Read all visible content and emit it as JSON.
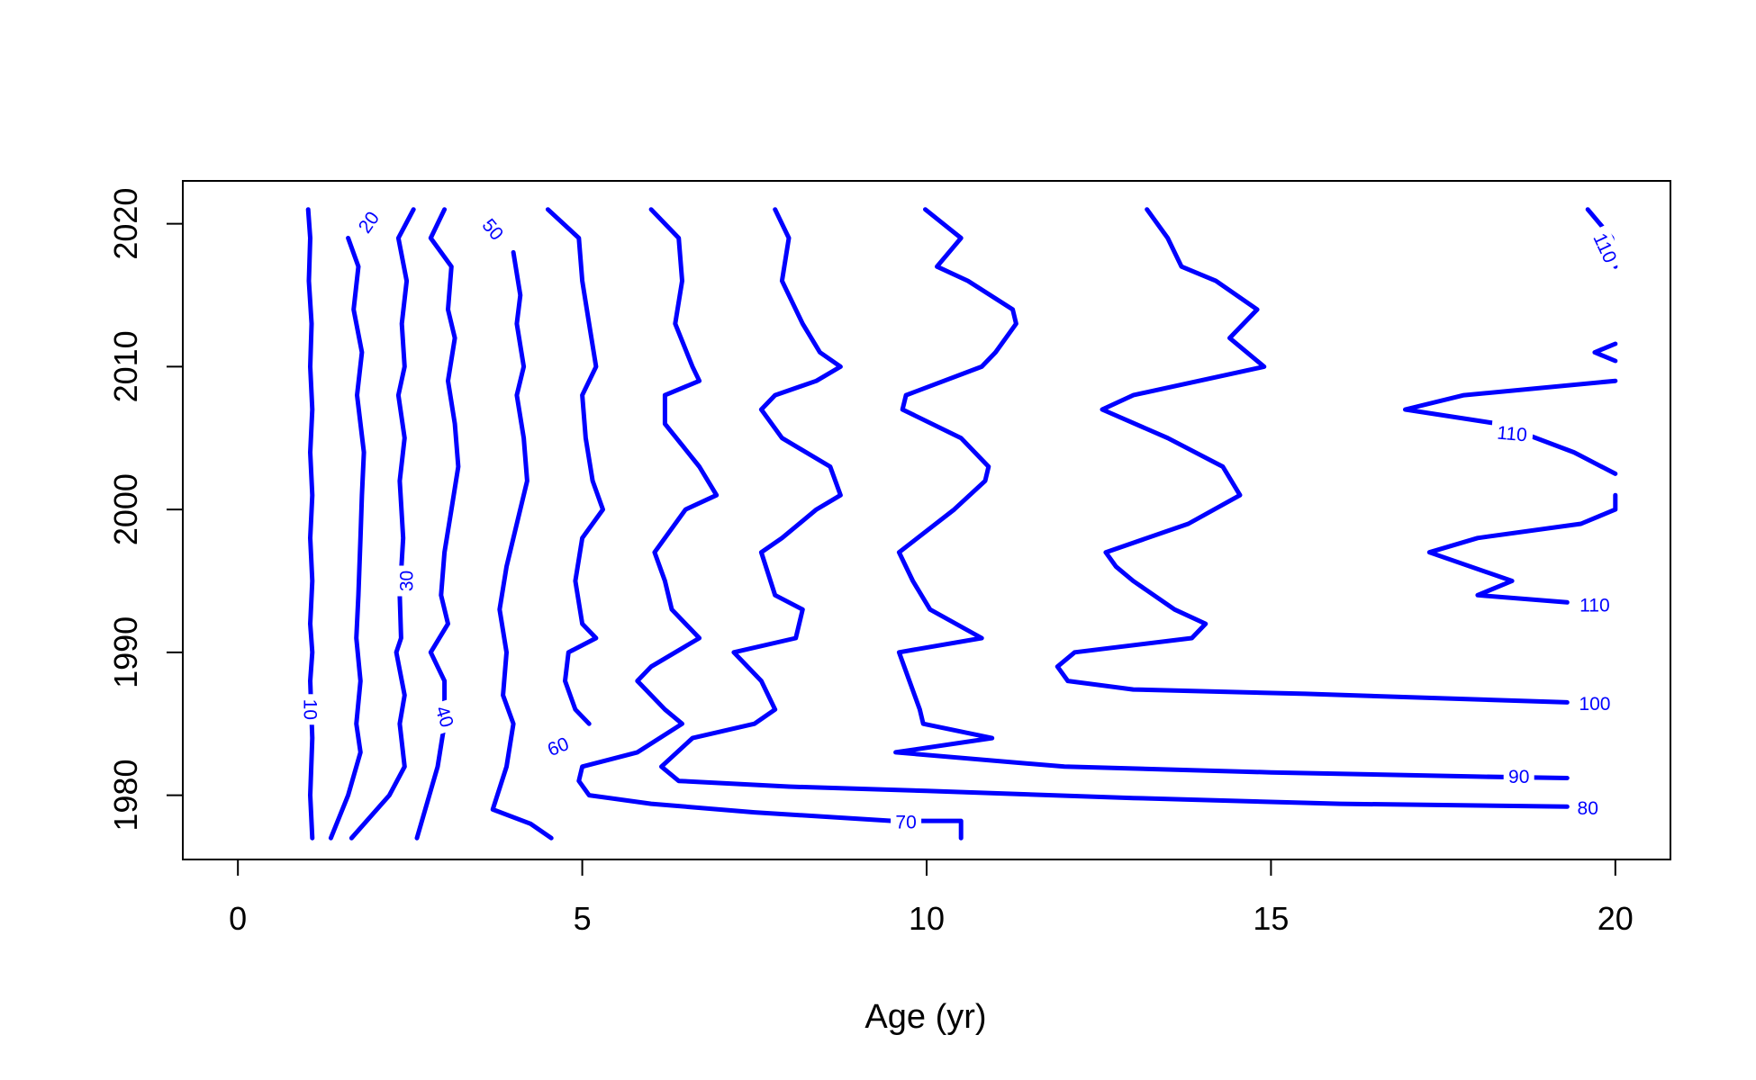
{
  "chart_data": {
    "type": "contour",
    "title": "",
    "xlabel": "Age (yr)",
    "ylabel": "",
    "xlim": [
      -0.8,
      20.8
    ],
    "ylim": [
      1975.5,
      2023
    ],
    "x_ticks": [
      0,
      5,
      10,
      15,
      20
    ],
    "x_tick_labels": [
      "0",
      "5",
      "10",
      "15",
      "20"
    ],
    "y_ticks": [
      1980,
      1990,
      2000,
      2010,
      2020
    ],
    "y_tick_labels": [
      "1980",
      "1990",
      "2000",
      "2010",
      "2020"
    ],
    "grid": false,
    "legend": "none",
    "line_color": "#0000FF",
    "series": [
      {
        "name": "10",
        "points": [
          [
            1.02,
            2021
          ],
          [
            1.05,
            2019
          ],
          [
            1.03,
            2016
          ],
          [
            1.07,
            2013
          ],
          [
            1.05,
            2010
          ],
          [
            1.08,
            2007
          ],
          [
            1.05,
            2004
          ],
          [
            1.08,
            2001
          ],
          [
            1.05,
            1998
          ],
          [
            1.08,
            1995
          ],
          [
            1.05,
            1992
          ],
          [
            1.08,
            1990
          ],
          [
            1.05,
            1988
          ],
          [
            1.08,
            1984
          ],
          [
            1.05,
            1980
          ],
          [
            1.08,
            1977
          ]
        ]
      },
      {
        "name": "20",
        "points": [
          [
            1.6,
            2019
          ],
          [
            1.75,
            2017
          ],
          [
            1.68,
            2014
          ],
          [
            1.8,
            2011
          ],
          [
            1.73,
            2008
          ],
          [
            1.83,
            2004
          ],
          [
            1.8,
            2001
          ],
          [
            1.78,
            1998
          ],
          [
            1.75,
            1994
          ],
          [
            1.72,
            1991
          ],
          [
            1.78,
            1988
          ],
          [
            1.72,
            1985
          ],
          [
            1.78,
            1983
          ],
          [
            1.6,
            1980
          ],
          [
            1.35,
            1977
          ]
        ]
      },
      {
        "name": "30",
        "points": [
          [
            2.55,
            2021
          ],
          [
            2.33,
            2019
          ],
          [
            2.45,
            2016
          ],
          [
            2.38,
            2013
          ],
          [
            2.42,
            2010
          ],
          [
            2.33,
            2008
          ],
          [
            2.42,
            2005
          ],
          [
            2.35,
            2002
          ],
          [
            2.4,
            1998
          ],
          [
            2.35,
            1994
          ],
          [
            2.37,
            1991
          ],
          [
            2.3,
            1990
          ],
          [
            2.42,
            1987
          ],
          [
            2.35,
            1985
          ],
          [
            2.42,
            1982
          ],
          [
            2.2,
            1980
          ],
          [
            1.65,
            1977
          ]
        ]
      },
      {
        "name": "40",
        "points": [
          [
            3.0,
            2021
          ],
          [
            2.8,
            2019
          ],
          [
            3.1,
            2017
          ],
          [
            3.05,
            2014
          ],
          [
            3.15,
            2012
          ],
          [
            3.05,
            2009
          ],
          [
            3.15,
            2006
          ],
          [
            3.2,
            2003
          ],
          [
            3.1,
            2000
          ],
          [
            3.0,
            1997
          ],
          [
            2.95,
            1994
          ],
          [
            3.05,
            1992
          ],
          [
            2.8,
            1990
          ],
          [
            3.0,
            1988
          ],
          [
            3.0,
            1985
          ],
          [
            2.9,
            1982
          ],
          [
            2.6,
            1977
          ]
        ]
      },
      {
        "name": "50",
        "points": [
          [
            4.0,
            2018
          ],
          [
            4.1,
            2015
          ],
          [
            4.05,
            2013
          ],
          [
            4.15,
            2010
          ],
          [
            4.05,
            2008
          ],
          [
            4.15,
            2005
          ],
          [
            4.2,
            2002
          ],
          [
            4.05,
            1999
          ],
          [
            3.9,
            1996
          ],
          [
            3.8,
            1993
          ],
          [
            3.9,
            1990
          ],
          [
            3.85,
            1987
          ],
          [
            4.0,
            1985
          ],
          [
            3.9,
            1982
          ],
          [
            3.7,
            1979
          ],
          [
            4.25,
            1978
          ],
          [
            4.55,
            1977
          ]
        ]
      },
      {
        "name": "60",
        "points": [
          [
            4.5,
            2021
          ],
          [
            4.95,
            2019
          ],
          [
            5.0,
            2016
          ],
          [
            5.1,
            2013
          ],
          [
            5.2,
            2010
          ],
          [
            5.0,
            2008
          ],
          [
            5.05,
            2005
          ],
          [
            5.15,
            2002
          ],
          [
            5.3,
            2000
          ],
          [
            5.0,
            1998
          ],
          [
            4.9,
            1995
          ],
          [
            5.0,
            1992
          ],
          [
            5.2,
            1991
          ],
          [
            4.8,
            1990
          ],
          [
            4.75,
            1988
          ],
          [
            4.9,
            1986
          ],
          [
            5.1,
            1985
          ]
        ]
      },
      {
        "name": "70",
        "points": [
          [
            6.0,
            2021
          ],
          [
            6.4,
            2019
          ],
          [
            6.45,
            2016
          ],
          [
            6.35,
            2013
          ],
          [
            6.6,
            2010
          ],
          [
            6.7,
            2009
          ],
          [
            6.2,
            2008
          ],
          [
            6.2,
            2006
          ],
          [
            6.7,
            2003
          ],
          [
            6.95,
            2001
          ],
          [
            6.5,
            2000
          ],
          [
            6.05,
            1997
          ],
          [
            6.2,
            1995
          ],
          [
            6.3,
            1993
          ],
          [
            6.7,
            1991
          ],
          [
            6.0,
            1989
          ],
          [
            5.8,
            1988
          ],
          [
            6.2,
            1986
          ],
          [
            6.45,
            1985
          ],
          [
            5.8,
            1983
          ],
          [
            5.0,
            1982
          ],
          [
            4.95,
            1981
          ],
          [
            5.1,
            1980
          ],
          [
            6.0,
            1979.4
          ],
          [
            7.5,
            1978.8
          ],
          [
            9.5,
            1978.2
          ],
          [
            10.5,
            1978.2
          ],
          [
            10.5,
            1977
          ]
        ]
      },
      {
        "name": "80",
        "points": [
          [
            7.8,
            2021
          ],
          [
            8.0,
            2019
          ],
          [
            7.9,
            2016
          ],
          [
            8.2,
            2013
          ],
          [
            8.45,
            2011
          ],
          [
            8.75,
            2010
          ],
          [
            8.4,
            2009
          ],
          [
            7.8,
            2008
          ],
          [
            7.6,
            2007
          ],
          [
            7.9,
            2005
          ],
          [
            8.6,
            2003
          ],
          [
            8.75,
            2001
          ],
          [
            8.4,
            2000
          ],
          [
            7.9,
            1998
          ],
          [
            7.6,
            1997
          ],
          [
            7.8,
            1994
          ],
          [
            8.2,
            1993
          ],
          [
            8.1,
            1991
          ],
          [
            7.2,
            1990
          ],
          [
            7.6,
            1988
          ],
          [
            7.8,
            1986
          ],
          [
            7.5,
            1985
          ],
          [
            6.6,
            1984
          ],
          [
            6.15,
            1982
          ],
          [
            6.4,
            1981
          ],
          [
            8.0,
            1980.6
          ],
          [
            10.0,
            1980.3
          ],
          [
            13.0,
            1979.8
          ],
          [
            16.0,
            1979.4
          ],
          [
            19.3,
            1979.2
          ]
        ]
      },
      {
        "name": "90",
        "points": [
          [
            9.98,
            2021
          ],
          [
            10.5,
            2019
          ],
          [
            10.15,
            2017
          ],
          [
            10.6,
            2016
          ],
          [
            11.25,
            2014
          ],
          [
            11.3,
            2013
          ],
          [
            11.0,
            2011
          ],
          [
            10.8,
            2010
          ],
          [
            9.7,
            2008
          ],
          [
            9.65,
            2007
          ],
          [
            10.5,
            2005
          ],
          [
            10.9,
            2003
          ],
          [
            10.85,
            2002
          ],
          [
            10.4,
            2000
          ],
          [
            9.6,
            1997
          ],
          [
            9.8,
            1995
          ],
          [
            10.05,
            1993
          ],
          [
            10.8,
            1991
          ],
          [
            9.6,
            1990
          ],
          [
            9.75,
            1988
          ],
          [
            9.9,
            1986
          ],
          [
            9.95,
            1985
          ],
          [
            10.95,
            1984
          ],
          [
            9.55,
            1983
          ],
          [
            12.0,
            1982
          ],
          [
            15.0,
            1981.6
          ],
          [
            18.0,
            1981.3
          ],
          [
            19.3,
            1981.2
          ]
        ]
      },
      {
        "name": "100",
        "points": [
          [
            13.2,
            2021
          ],
          [
            13.5,
            2019
          ],
          [
            13.7,
            2017
          ],
          [
            14.2,
            2016
          ],
          [
            14.8,
            2014
          ],
          [
            14.4,
            2012
          ],
          [
            14.9,
            2010
          ],
          [
            13.0,
            2008
          ],
          [
            12.55,
            2007
          ],
          [
            13.5,
            2005
          ],
          [
            14.3,
            2003
          ],
          [
            14.55,
            2001
          ],
          [
            13.8,
            1999
          ],
          [
            12.6,
            1997
          ],
          [
            12.75,
            1996
          ],
          [
            13.0,
            1995
          ],
          [
            13.6,
            1993
          ],
          [
            14.05,
            1992
          ],
          [
            13.85,
            1991
          ],
          [
            12.15,
            1990
          ],
          [
            11.9,
            1989
          ],
          [
            12.05,
            1988
          ],
          [
            13.0,
            1987.4
          ],
          [
            15.5,
            1987.1
          ],
          [
            19.3,
            1986.5
          ]
        ]
      },
      {
        "name": "110",
        "points": [
          [
            19.6,
            2021
          ],
          [
            19.95,
            2019
          ],
          [
            20.0,
            2017
          ]
        ]
      },
      {
        "name": "110",
        "points": [
          [
            20.0,
            2011.6
          ],
          [
            19.7,
            2011
          ],
          [
            20.0,
            2010.4
          ]
        ]
      },
      {
        "name": "110",
        "points": [
          [
            20.0,
            2009
          ],
          [
            17.8,
            2008
          ],
          [
            16.95,
            2007
          ],
          [
            18.3,
            2006
          ],
          [
            19.4,
            2004
          ],
          [
            19.8,
            2003
          ],
          [
            20.0,
            2002.5
          ]
        ]
      },
      {
        "name": "110",
        "points": [
          [
            20.0,
            2001
          ],
          [
            20.0,
            2000
          ],
          [
            19.5,
            1999
          ],
          [
            18.0,
            1998
          ],
          [
            17.3,
            1997
          ],
          [
            18.5,
            1995
          ],
          [
            18.0,
            1994
          ],
          [
            19.3,
            1993.5
          ]
        ]
      }
    ],
    "annotations": [
      {
        "text": "10",
        "x": 1.05,
        "y": 1986,
        "angle": 90
      },
      {
        "text": "20",
        "x": 1.9,
        "y": 2020.1,
        "angle": -55
      },
      {
        "text": "30",
        "x": 2.45,
        "y": 1995,
        "angle": -90
      },
      {
        "text": "40",
        "x": 3.0,
        "y": 1985.5,
        "angle": 72
      },
      {
        "text": "50",
        "x": 3.7,
        "y": 2019.6,
        "angle": 50
      },
      {
        "text": "60",
        "x": 4.65,
        "y": 1983.4,
        "angle": -22
      },
      {
        "text": "70",
        "x": 9.7,
        "y": 1978.1,
        "angle": 0
      },
      {
        "text": "80",
        "x": 19.6,
        "y": 1979.1,
        "angle": 0
      },
      {
        "text": "90",
        "x": 18.6,
        "y": 1981.3,
        "angle": 0
      },
      {
        "text": "100",
        "x": 19.7,
        "y": 1986.4,
        "angle": 0
      },
      {
        "text": "110",
        "x": 19.85,
        "y": 2018.3,
        "angle": 65
      },
      {
        "text": "110",
        "x": 18.5,
        "y": 2005.3,
        "angle": 5
      },
      {
        "text": "110",
        "x": 19.7,
        "y": 1993.3,
        "angle": 0
      }
    ]
  }
}
